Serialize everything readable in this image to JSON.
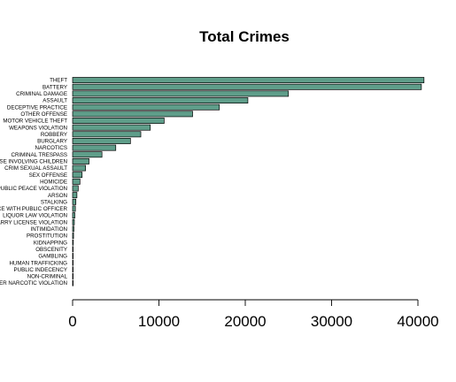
{
  "chart_data": {
    "type": "bar",
    "orientation": "horizontal",
    "title": "Total Crimes",
    "xlabel": "",
    "ylabel": "",
    "bar_color": "#5f9e8a",
    "xlim": [
      0,
      41000
    ],
    "xticks": [
      0,
      10000,
      20000,
      30000,
      40000
    ],
    "xtick_labels": [
      "0",
      "10000",
      "20000",
      "30000",
      "40000"
    ],
    "categories": [
      "THEFT",
      "BATTERY",
      "CRIMINAL DAMAGE",
      "ASSAULT",
      "DECEPTIVE PRACTICE",
      "OTHER OFFENSE",
      "MOTOR VEHICLE THEFT",
      "WEAPONS VIOLATION",
      "ROBBERY",
      "BURGLARY",
      "NARCOTICS",
      "CRIMINAL TRESPASS",
      "OFFENSE INVOLVING CHILDREN",
      "CRIM SEXUAL ASSAULT",
      "SEX OFFENSE",
      "HOMICIDE",
      "PUBLIC PEACE VIOLATION",
      "ARSON",
      "STALKING",
      "INTERFERENCE WITH PUBLIC OFFICER",
      "LIQUOR LAW VIOLATION",
      "CONCEALED CARRY LICENSE VIOLATION",
      "INTIMIDATION",
      "PROSTITUTION",
      "KIDNAPPING",
      "OBSCENITY",
      "GAMBLING",
      "HUMAN TRAFFICKING",
      "PUBLIC INDECENCY",
      "NON-CRIMINAL",
      "OTHER NARCOTIC VIOLATION"
    ],
    "values": [
      40700,
      40400,
      25000,
      20300,
      17000,
      13900,
      10600,
      9000,
      7900,
      6700,
      5000,
      3400,
      1900,
      1500,
      1100,
      850,
      650,
      500,
      380,
      320,
      260,
      200,
      150,
      110,
      80,
      50,
      35,
      20,
      15,
      10,
      5
    ]
  }
}
